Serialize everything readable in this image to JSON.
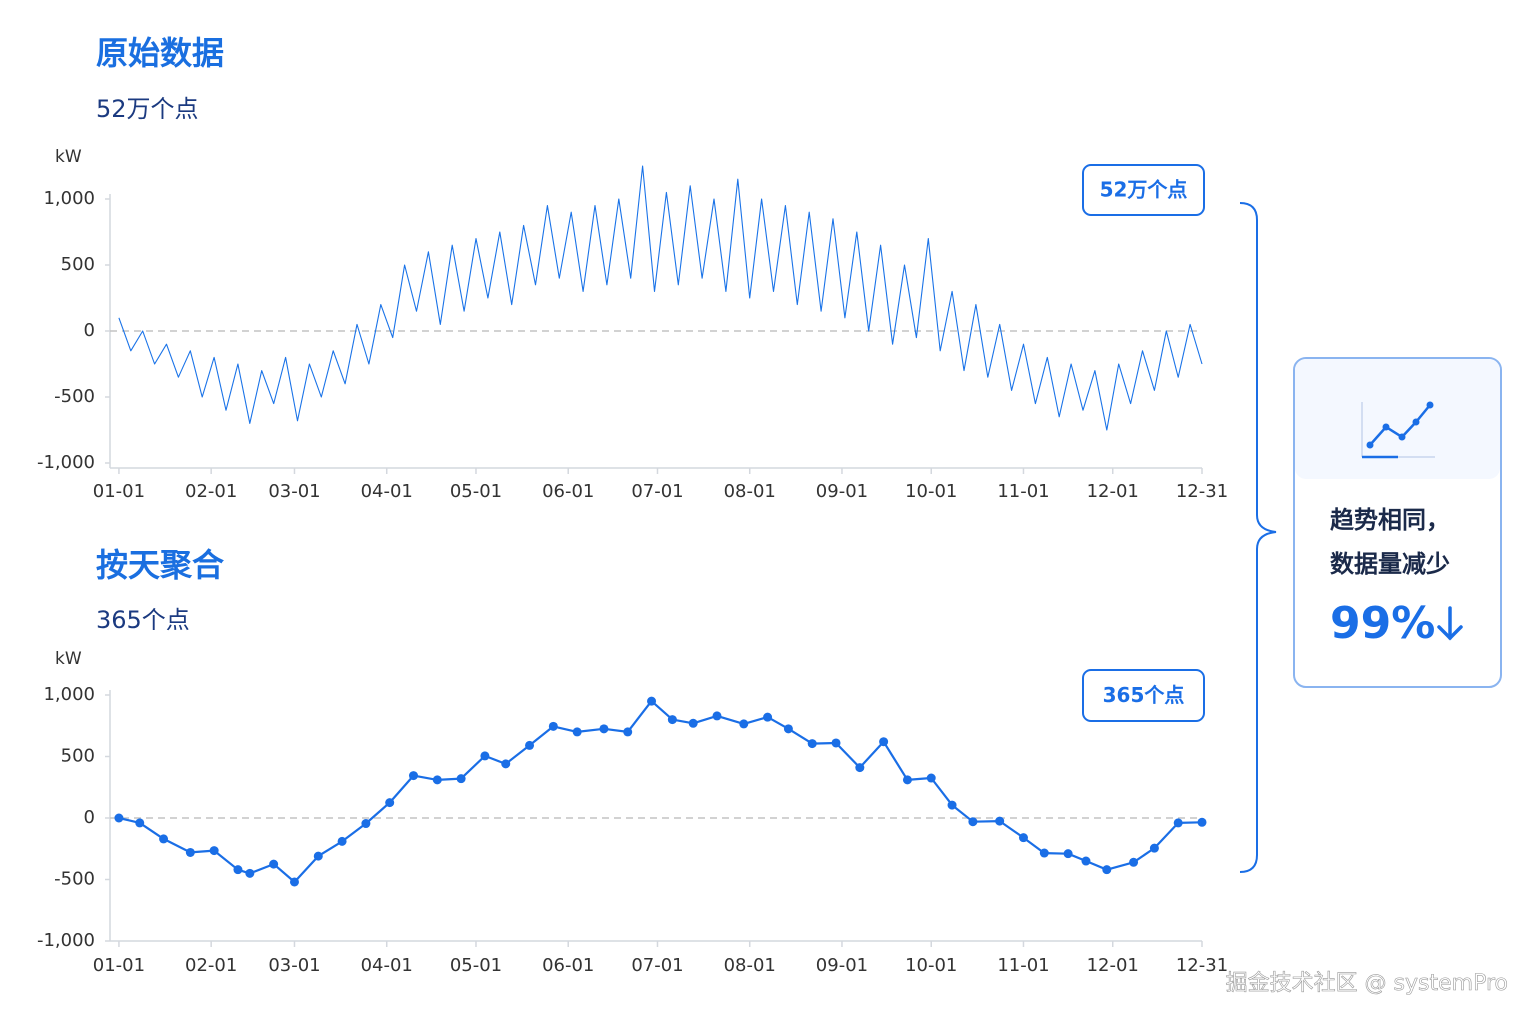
{
  "chart_data": [
    {
      "type": "line",
      "title": "原始数据",
      "subtitle": "52万个点",
      "y_label": "kW",
      "badge": "52万个点",
      "color": "#1a73e8",
      "markers": false,
      "zero_line": true,
      "x": [
        0,
        4,
        8,
        12,
        16,
        20,
        24,
        28,
        32,
        36,
        40,
        44,
        48,
        52,
        56,
        60,
        64,
        68,
        72,
        76,
        80,
        84,
        88,
        92,
        96,
        100,
        104,
        108,
        112,
        116,
        120,
        124,
        128,
        132,
        136,
        140,
        144,
        148,
        152,
        156,
        160,
        164,
        168,
        172,
        176,
        180,
        184,
        188,
        192,
        196,
        200,
        204,
        208,
        212,
        216,
        220,
        224,
        228,
        232,
        236,
        240,
        244,
        248,
        252,
        256,
        260,
        264,
        268,
        272,
        276,
        280,
        284,
        288,
        292,
        296,
        300,
        304,
        308,
        312,
        316,
        320,
        324,
        328,
        332,
        336,
        340,
        344,
        348,
        352,
        356,
        360,
        364
      ],
      "values": [
        100,
        -150,
        0,
        -250,
        -100,
        -350,
        -150,
        -500,
        -200,
        -600,
        -250,
        -700,
        -300,
        -550,
        -200,
        -680,
        -250,
        -500,
        -150,
        -400,
        50,
        -250,
        200,
        -50,
        500,
        150,
        600,
        50,
        650,
        150,
        700,
        250,
        750,
        200,
        800,
        350,
        950,
        400,
        900,
        300,
        950,
        350,
        1000,
        400,
        1250,
        300,
        1050,
        350,
        1100,
        400,
        1000,
        300,
        1150,
        250,
        1000,
        300,
        950,
        200,
        900,
        150,
        850,
        100,
        750,
        0,
        650,
        -100,
        500,
        -50,
        700,
        -150,
        300,
        -300,
        200,
        -350,
        50,
        -450,
        -100,
        -550,
        -200,
        -650,
        -250,
        -600,
        -300,
        -750,
        -250,
        -550,
        -150,
        -450,
        0,
        -350,
        50,
        -250
      ],
      "xlim": [
        -3,
        364
      ],
      "xticks": [
        {
          "value": 0,
          "label": "01-01"
        },
        {
          "value": 31,
          "label": "02-01"
        },
        {
          "value": 59,
          "label": "03-01"
        },
        {
          "value": 90,
          "label": "04-01"
        },
        {
          "value": 120,
          "label": "05-01"
        },
        {
          "value": 151,
          "label": "06-01"
        },
        {
          "value": 181,
          "label": "07-01"
        },
        {
          "value": 212,
          "label": "08-01"
        },
        {
          "value": 243,
          "label": "09-01"
        },
        {
          "value": 273,
          "label": "10-01"
        },
        {
          "value": 304,
          "label": "11-01"
        },
        {
          "value": 334,
          "label": "12-01"
        },
        {
          "value": 364,
          "label": "12-31"
        }
      ],
      "ylim": [
        -1000,
        1000
      ],
      "yticks": [
        {
          "value": 1000,
          "label": "1,000"
        },
        500,
        0,
        -500,
        {
          "value": -1000,
          "label": "-1,000"
        }
      ]
    },
    {
      "type": "line",
      "title": "按天聚合",
      "subtitle": "365个点",
      "y_label": "kW",
      "badge": "365个点",
      "color": "#1a6ee6",
      "markers": true,
      "zero_line": true,
      "x": [
        0,
        7,
        15,
        24,
        32,
        40,
        44,
        52,
        59,
        67,
        75,
        83,
        91,
        99,
        107,
        115,
        123,
        130,
        138,
        146,
        154,
        163,
        171,
        179,
        186,
        193,
        201,
        210,
        218,
        225,
        233,
        241,
        249,
        257,
        265,
        273,
        280,
        287,
        296,
        304,
        311,
        319,
        325,
        332,
        341,
        348,
        356,
        364
      ],
      "values": [
        0,
        -40,
        -170,
        -280,
        -265,
        -420,
        -450,
        -375,
        -520,
        -310,
        -190,
        -45,
        125,
        345,
        310,
        320,
        505,
        440,
        590,
        745,
        700,
        725,
        700,
        950,
        800,
        770,
        830,
        765,
        820,
        725,
        605,
        610,
        410,
        620,
        310,
        325,
        105,
        -30,
        -25,
        -160,
        -285,
        -290,
        -350,
        -420,
        -360,
        -245,
        -40,
        -35
      ],
      "xlim": [
        -3,
        364
      ],
      "xticks": [
        {
          "value": 0,
          "label": "01-01"
        },
        {
          "value": 31,
          "label": "02-01"
        },
        {
          "value": 59,
          "label": "03-01"
        },
        {
          "value": 90,
          "label": "04-01"
        },
        {
          "value": 120,
          "label": "05-01"
        },
        {
          "value": 151,
          "label": "06-01"
        },
        {
          "value": 181,
          "label": "07-01"
        },
        {
          "value": 212,
          "label": "08-01"
        },
        {
          "value": 243,
          "label": "09-01"
        },
        {
          "value": 273,
          "label": "10-01"
        },
        {
          "value": 304,
          "label": "11-01"
        },
        {
          "value": 334,
          "label": "12-01"
        },
        {
          "value": 364,
          "label": "12-31"
        }
      ],
      "ylim": [
        -1000,
        1000
      ],
      "yticks": [
        {
          "value": 1000,
          "label": "1,000"
        },
        500,
        0,
        -500,
        {
          "value": -1000,
          "label": "-1,000"
        }
      ]
    }
  ],
  "summary": {
    "line1": "趋势相同，",
    "line2": "数据量减少",
    "percent": "99%"
  },
  "watermark": "掘金技术社区 @ systemPro"
}
